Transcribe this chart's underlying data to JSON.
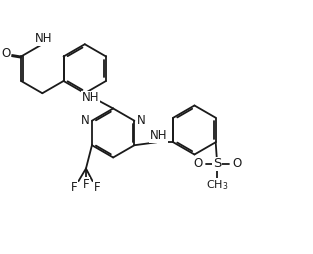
{
  "bg_color": "#ffffff",
  "line_color": "#1a1a1a",
  "line_width": 1.3,
  "font_size": 8.5,
  "fig_width": 3.13,
  "fig_height": 2.54,
  "dpi": 100,
  "xlim": [
    0,
    10
  ],
  "ylim": [
    0,
    8.5
  ]
}
